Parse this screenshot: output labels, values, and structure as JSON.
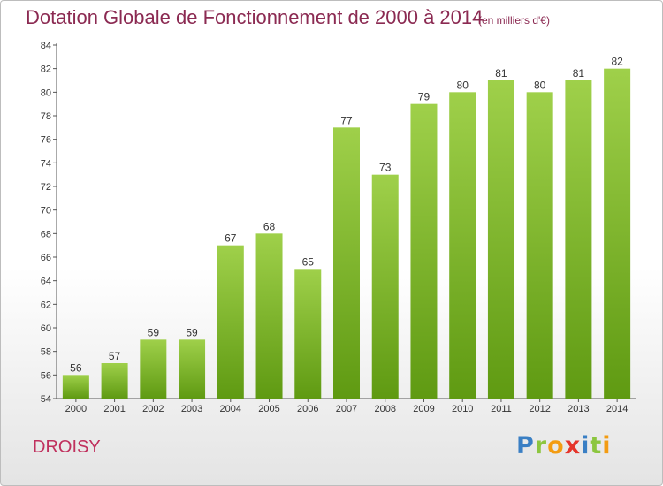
{
  "chart_data": {
    "type": "bar",
    "title": "Dotation Globale de Fonctionnement de 2000 à 2014",
    "subtitle": "(en milliers d'€)",
    "categories": [
      "2000",
      "2001",
      "2002",
      "2003",
      "2004",
      "2005",
      "2006",
      "2007",
      "2008",
      "2009",
      "2010",
      "2011",
      "2012",
      "2013",
      "2014"
    ],
    "values": [
      56,
      57,
      59,
      59,
      67,
      68,
      65,
      77,
      73,
      79,
      80,
      81,
      80,
      81,
      82
    ],
    "ylim": [
      54,
      84
    ],
    "yticks": [
      54,
      56,
      58,
      60,
      62,
      64,
      66,
      68,
      70,
      72,
      74,
      76,
      78,
      80,
      82,
      84
    ],
    "xlabel": "",
    "ylabel": "",
    "grid": false,
    "colors": {
      "bar_top": "#9fd04a",
      "bar_bottom": "#5f9a12",
      "title": "#8b2a52"
    }
  },
  "footer": {
    "commune": "DROISY",
    "logo": {
      "text": "Proxiti",
      "letters": [
        {
          "ch": "P",
          "color": "#3a7fc4"
        },
        {
          "ch": "r",
          "color": "#8cc63f"
        },
        {
          "ch": "o",
          "color": "#f39c12"
        },
        {
          "ch": "x",
          "color": "#e5352b"
        },
        {
          "ch": "i",
          "color": "#3a7fc4"
        },
        {
          "ch": "t",
          "color": "#8cc63f"
        },
        {
          "ch": "i",
          "color": "#f39c12"
        }
      ]
    }
  }
}
